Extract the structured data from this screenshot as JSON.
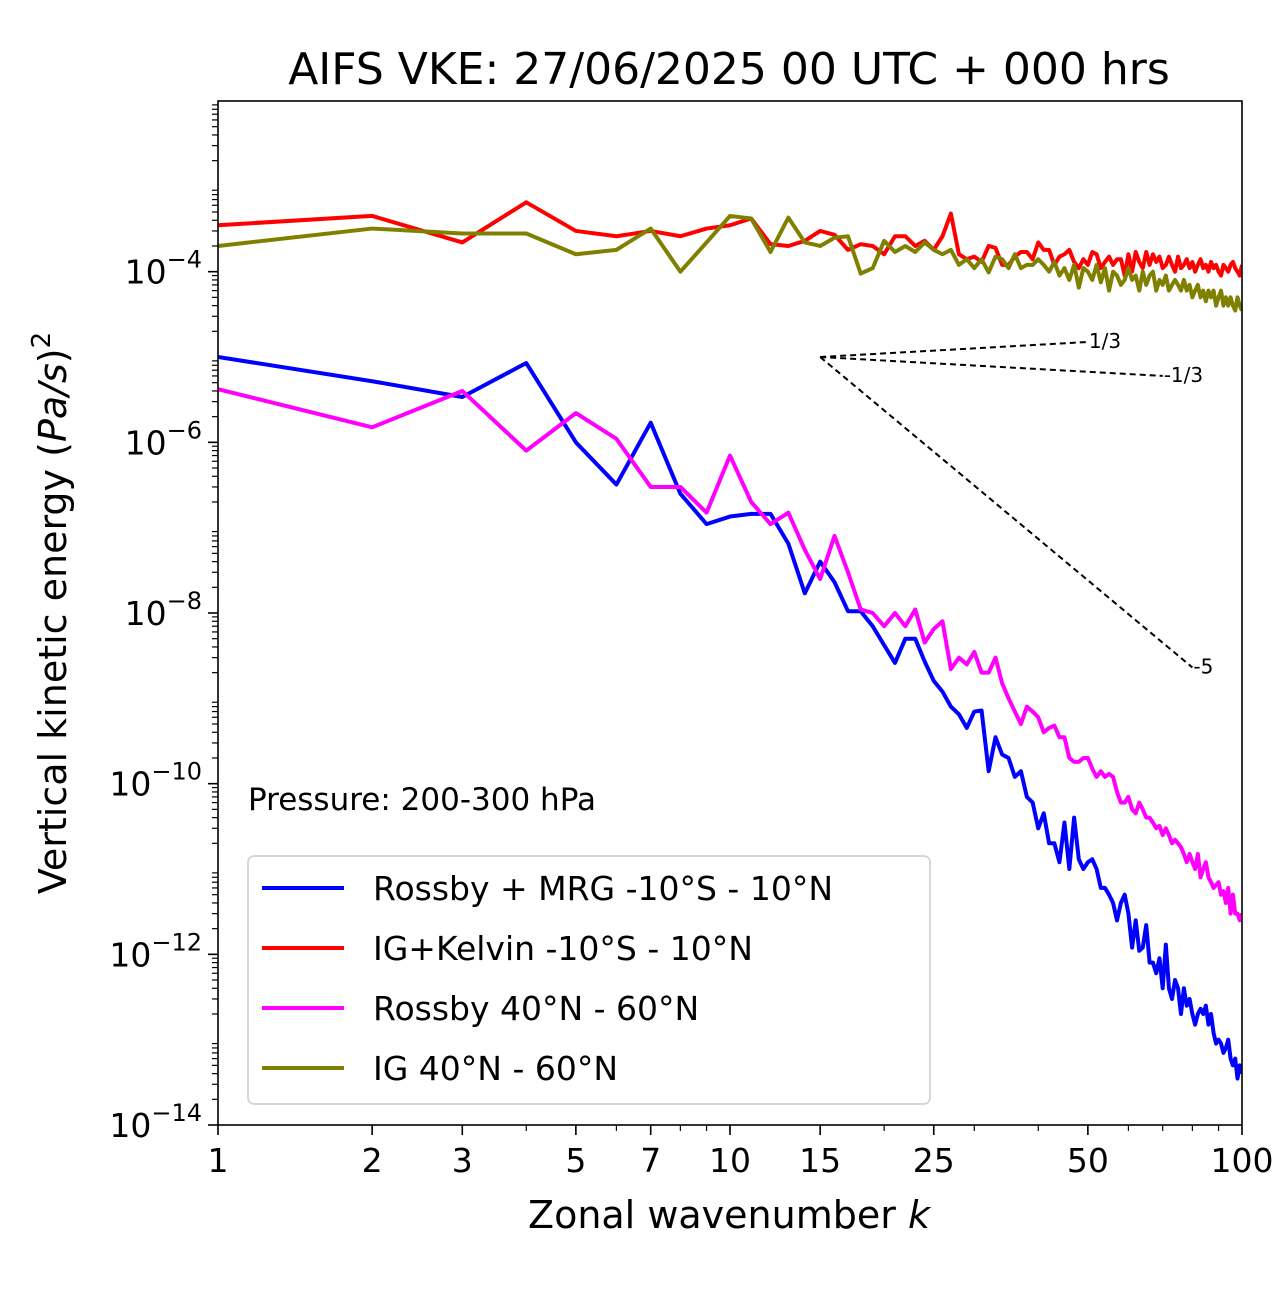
{
  "chart_data": {
    "type": "line",
    "title": "AIFS VKE: 27/06/2025 00 UTC + 000 hrs",
    "xlabel": "Zonal wavenumber k",
    "ylabel": "Vertical kinetic energy (Pa/s)^2",
    "xscale": "log",
    "yscale": "log",
    "xlim": [
      1,
      100
    ],
    "ylim": [
      1e-14,
      0.01
    ],
    "x_ticks": [
      1,
      2,
      3,
      5,
      7,
      10,
      15,
      25,
      50,
      100
    ],
    "x_tick_labels": [
      "1",
      "2",
      "3",
      "5",
      "7",
      "10",
      "15",
      "25",
      "50",
      "100"
    ],
    "y_ticks": [
      1e-14,
      1e-12,
      1e-10,
      1e-08,
      1e-06,
      0.0001
    ],
    "y_tick_labels": [
      {
        "base": "10",
        "exp": "−14"
      },
      {
        "base": "10",
        "exp": "−12"
      },
      {
        "base": "10",
        "exp": "−10"
      },
      {
        "base": "10",
        "exp": "−8"
      },
      {
        "base": "10",
        "exp": "−6"
      },
      {
        "base": "10",
        "exp": "−4"
      }
    ],
    "annotation": "Pressure: 200-300 hPa",
    "grid": false,
    "legend_position": "lower-left",
    "series": [
      {
        "name": "Rossby + MRG -10°S - 10°N",
        "color": "#0000ff",
        "x": [
          1,
          2,
          3,
          4,
          5,
          6,
          7,
          8,
          9,
          10,
          11,
          12,
          13,
          14,
          15,
          16,
          17,
          18,
          19,
          20,
          21,
          22,
          23,
          24,
          25,
          26,
          27,
          28,
          29,
          30,
          31,
          32,
          33,
          34,
          35,
          36,
          37,
          38,
          39,
          40,
          41,
          42,
          43,
          44,
          45,
          46,
          47,
          48,
          49,
          50,
          51,
          52,
          53,
          54,
          55,
          56,
          57,
          58,
          59,
          60,
          61,
          62,
          63,
          64,
          65,
          66,
          67,
          68,
          69,
          70,
          71,
          72,
          73,
          74,
          75,
          76,
          77,
          78,
          79,
          80,
          81,
          82,
          83,
          84,
          85,
          86,
          87,
          88,
          89,
          90,
          91,
          92,
          93,
          94,
          95,
          96,
          97,
          98,
          99,
          100
        ],
        "y": [
          1e-05,
          5.2e-06,
          3.4e-06,
          8.5e-06,
          1e-06,
          3.2e-07,
          1.7e-06,
          2.5e-07,
          1.1e-07,
          1.35e-07,
          1.45e-07,
          1.45e-07,
          6.5e-08,
          1.7e-08,
          4e-08,
          2.3e-08,
          1.05e-08,
          1.05e-08,
          7e-09,
          4.2e-09,
          2.6e-09,
          5e-09,
          5e-09,
          2.7e-09,
          1.6e-09,
          1.2e-09,
          8e-10,
          6.5e-10,
          4.5e-10,
          7e-10,
          7.2e-10,
          1.4e-10,
          3.5e-10,
          2.2e-10,
          2e-10,
          1.2e-10,
          1.4e-10,
          7e-11,
          6e-11,
          3e-11,
          4.5e-11,
          2e-11,
          2e-11,
          1.2e-11,
          3.5e-11,
          1e-11,
          4e-11,
          1.3e-11,
          1e-11,
          1.2e-11,
          1.3e-11,
          1e-11,
          6e-12,
          6e-12,
          5e-12,
          4e-12,
          2.5e-12,
          4e-12,
          5e-12,
          3e-12,
          1.2e-12,
          2.5e-12,
          1.1e-12,
          1.2e-12,
          2.2e-12,
          8e-13,
          8e-13,
          6e-13,
          9e-13,
          4e-13,
          1.3e-12,
          4e-13,
          3e-13,
          5e-13,
          4e-13,
          2e-13,
          4e-13,
          2.5e-13,
          3e-13,
          2e-13,
          1.5e-13,
          2e-13,
          2.3e-13,
          2e-13,
          2.5e-13,
          1.5e-13,
          2e-13,
          1.2e-13,
          9e-14,
          1e-13,
          9e-14,
          7e-14,
          8e-14,
          1e-13,
          6e-14,
          5e-14,
          6e-14,
          3.5e-14,
          5e-14,
          4e-14
        ]
      },
      {
        "name": "IG+Kelvin -10°S - 10°N",
        "color": "#ff0000",
        "x": [
          1,
          2,
          3,
          4,
          5,
          6,
          7,
          8,
          9,
          10,
          11,
          12,
          13,
          14,
          15,
          16,
          17,
          18,
          19,
          20,
          21,
          22,
          23,
          24,
          25,
          26,
          27,
          28,
          29,
          30,
          31,
          32,
          33,
          34,
          35,
          36,
          37,
          38,
          39,
          40,
          41,
          42,
          43,
          44,
          45,
          46,
          47,
          48,
          49,
          50,
          51,
          52,
          53,
          54,
          55,
          56,
          57,
          58,
          59,
          60,
          61,
          62,
          63,
          64,
          65,
          66,
          67,
          68,
          69,
          70,
          71,
          72,
          73,
          74,
          75,
          76,
          77,
          78,
          79,
          80,
          81,
          82,
          83,
          84,
          85,
          86,
          87,
          88,
          89,
          90,
          91,
          92,
          93,
          94,
          95,
          96,
          97,
          98,
          99,
          100
        ],
        "y": [
          0.00035,
          0.00045,
          0.00022,
          0.00065,
          0.0003,
          0.00026,
          0.0003,
          0.00026,
          0.00032,
          0.00035,
          0.00042,
          0.00021,
          0.0002,
          0.00023,
          0.0003,
          0.00027,
          0.00018,
          0.00021,
          0.0002,
          0.00016,
          0.00026,
          0.00026,
          0.0002,
          0.00023,
          0.00018,
          0.00026,
          0.00048,
          0.00016,
          0.00014,
          0.00015,
          0.00013,
          0.0002,
          0.00019,
          0.00012,
          0.00012,
          0.00015,
          0.00017,
          0.00017,
          0.00014,
          0.00022,
          0.00018,
          0.00018,
          0.00012,
          0.00015,
          0.00016,
          0.00018,
          0.00013,
          0.00011,
          0.00014,
          0.00012,
          0.00017,
          0.00016,
          0.00011,
          0.00013,
          0.00015,
          0.00012,
          0.00014,
          0.00014,
          9e-05,
          0.00016,
          0.0001,
          0.00017,
          0.00013,
          0.00011,
          0.00017,
          0.00012,
          0.00016,
          0.00013,
          0.00015,
          0.00011,
          0.00012,
          0.00015,
          0.00012,
          0.0001,
          0.00015,
          0.00011,
          0.00012,
          0.00014,
          0.00011,
          0.00013,
          0.0001,
          0.00012,
          0.00014,
          0.00011,
          0.00012,
          0.0001,
          0.00013,
          0.00011,
          0.00012,
          0.0001,
          9e-05,
          0.00012,
          0.00011,
          0.0001,
          0.00012,
          0.00013,
          0.00011,
          0.0001,
          9e-05,
          0.00012
        ]
      },
      {
        "name": "Rossby 40°N - 60°N",
        "color": "#ff00ff",
        "x": [
          1,
          2,
          3,
          4,
          5,
          6,
          7,
          8,
          9,
          10,
          11,
          12,
          13,
          14,
          15,
          16,
          17,
          18,
          19,
          20,
          21,
          22,
          23,
          24,
          25,
          26,
          27,
          28,
          29,
          30,
          31,
          32,
          33,
          34,
          35,
          36,
          37,
          38,
          39,
          40,
          41,
          42,
          43,
          44,
          45,
          46,
          47,
          48,
          49,
          50,
          51,
          52,
          53,
          54,
          55,
          56,
          57,
          58,
          59,
          60,
          61,
          62,
          63,
          64,
          65,
          66,
          67,
          68,
          69,
          70,
          71,
          72,
          73,
          74,
          75,
          76,
          77,
          78,
          79,
          80,
          81,
          82,
          83,
          84,
          85,
          86,
          87,
          88,
          89,
          90,
          91,
          92,
          93,
          94,
          95,
          96,
          97,
          98,
          99,
          100
        ],
        "y": [
          4.2e-06,
          1.5e-06,
          4e-06,
          8e-07,
          2.2e-06,
          1.1e-06,
          3e-07,
          3e-07,
          1.5e-07,
          7e-07,
          2e-07,
          1.1e-07,
          1.5e-07,
          5.5e-08,
          2.5e-08,
          8e-08,
          3e-08,
          1.1e-08,
          1e-08,
          7e-09,
          1e-08,
          7e-09,
          1.1e-08,
          4.5e-09,
          6.5e-09,
          8e-09,
          2.2e-09,
          3e-09,
          2.5e-09,
          3.5e-09,
          2e-09,
          2e-09,
          3e-09,
          1.5e-09,
          1e-09,
          7e-10,
          5e-10,
          8e-10,
          7e-10,
          6e-10,
          4e-10,
          4.5e-10,
          4.8e-10,
          3.5e-10,
          3.5e-10,
          2e-10,
          1.8e-10,
          1.8e-10,
          2e-10,
          2e-10,
          1.5e-10,
          1.2e-10,
          1.4e-10,
          1.2e-10,
          1.3e-10,
          1.2e-10,
          8e-11,
          6e-11,
          6e-11,
          7e-11,
          5e-11,
          4.5e-11,
          6e-11,
          5e-11,
          4e-11,
          4e-11,
          3.5e-11,
          3e-11,
          3.2e-11,
          2.5e-11,
          3e-11,
          2.5e-11,
          2e-11,
          2.2e-11,
          2e-11,
          1.8e-11,
          1.5e-11,
          1.2e-11,
          1.5e-11,
          1.2e-11,
          1e-11,
          1.5e-11,
          8e-12,
          1e-11,
          1.2e-11,
          8e-12,
          7e-12,
          6e-12,
          6.5e-12,
          7e-12,
          5e-12,
          5.5e-12,
          4e-12,
          6e-12,
          3e-12,
          5e-12,
          3e-12,
          3e-12,
          2.5e-12,
          3e-12
        ]
      },
      {
        "name": "IG 40°N - 60°N",
        "color": "#808000",
        "x": [
          1,
          2,
          3,
          4,
          5,
          6,
          7,
          8,
          9,
          10,
          11,
          12,
          13,
          14,
          15,
          16,
          17,
          18,
          19,
          20,
          21,
          22,
          23,
          24,
          25,
          26,
          27,
          28,
          29,
          30,
          31,
          32,
          33,
          34,
          35,
          36,
          37,
          38,
          39,
          40,
          41,
          42,
          43,
          44,
          45,
          46,
          47,
          48,
          49,
          50,
          51,
          52,
          53,
          54,
          55,
          56,
          57,
          58,
          59,
          60,
          61,
          62,
          63,
          64,
          65,
          66,
          67,
          68,
          69,
          70,
          71,
          72,
          73,
          74,
          75,
          76,
          77,
          78,
          79,
          80,
          81,
          82,
          83,
          84,
          85,
          86,
          87,
          88,
          89,
          90,
          91,
          92,
          93,
          94,
          95,
          96,
          97,
          98,
          99,
          100
        ],
        "y": [
          0.0002,
          0.00032,
          0.00028,
          0.00028,
          0.00016,
          0.00018,
          0.00032,
          0.0001,
          0.00022,
          0.00045,
          0.00042,
          0.00017,
          0.00043,
          0.00022,
          0.0002,
          0.00025,
          0.00026,
          9.5e-05,
          0.00011,
          0.00023,
          0.00017,
          0.0002,
          0.00017,
          0.00022,
          0.00018,
          0.00016,
          0.00018,
          0.00012,
          0.00014,
          0.00011,
          0.00014,
          9.8e-05,
          0.00015,
          0.00014,
          0.00011,
          0.00016,
          0.00011,
          0.00012,
          0.00012,
          0.00014,
          0.00012,
          0.0001,
          0.00013,
          9e-05,
          0.00011,
          8e-05,
          0.00012,
          6.5e-05,
          0.00011,
          0.0001,
          8e-05,
          0.00012,
          7.5e-05,
          0.00011,
          6e-05,
          0.0001,
          9e-05,
          7e-05,
          8e-05,
          0.00011,
          8e-05,
          9e-05,
          6e-05,
          0.0001,
          7e-05,
          9e-05,
          0.0001,
          6e-05,
          8e-05,
          7e-05,
          9e-05,
          6e-05,
          7e-05,
          8e-05,
          7e-05,
          6e-05,
          8e-05,
          6e-05,
          7e-05,
          5e-05,
          6e-05,
          7e-05,
          5e-05,
          6e-05,
          4.5e-05,
          6e-05,
          5e-05,
          6e-05,
          4e-05,
          5e-05,
          6e-05,
          4e-05,
          5e-05,
          4e-05,
          5e-05,
          4e-05,
          3.5e-05,
          5e-05,
          4e-05,
          3.5e-05
        ]
      }
    ],
    "reference_slopes": [
      {
        "label": "1/3",
        "x": [
          15,
          50
        ],
        "y": [
          1e-05,
          1.5e-05
        ]
      },
      {
        "label": "-1/3",
        "x": [
          15,
          70
        ],
        "y": [
          1e-05,
          6e-06
        ]
      },
      {
        "label": "-5",
        "x": [
          15,
          80
        ],
        "y": [
          1e-05,
          2.3e-09
        ]
      }
    ]
  }
}
